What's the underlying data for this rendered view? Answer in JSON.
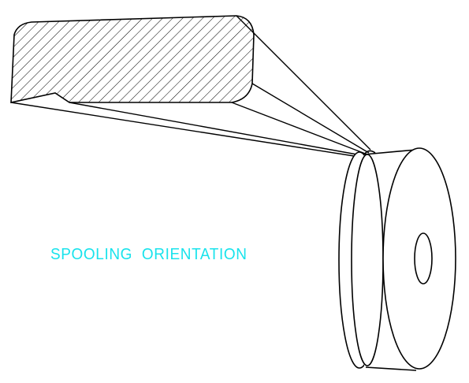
{
  "caption": {
    "text": "SPOOLING ORIENTATION",
    "color": "#19e3ec"
  },
  "drawing": {
    "line_color": "#000000",
    "hatch_pattern": "diagonal-cross-section"
  }
}
